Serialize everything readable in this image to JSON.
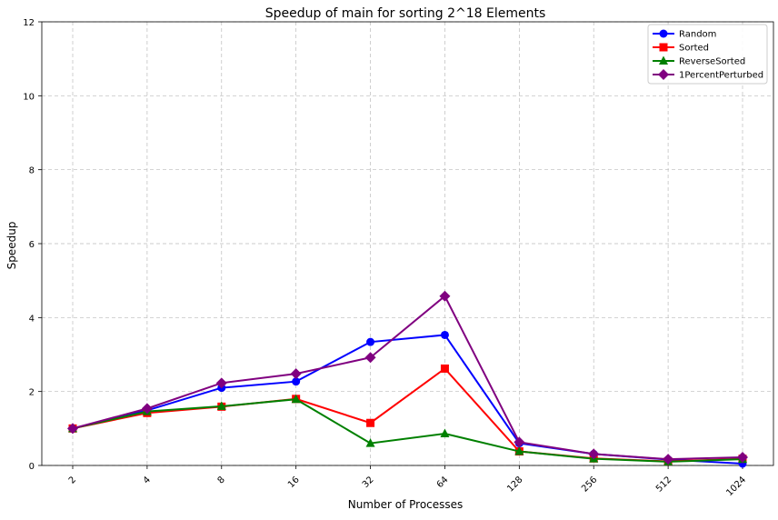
{
  "chart_data": {
    "type": "line",
    "title": "Speedup of main for sorting 2^18 Elements",
    "xlabel": "Number of Processes",
    "ylabel": "Speedup",
    "categories": [
      "2",
      "4",
      "8",
      "16",
      "32",
      "64",
      "128",
      "256",
      "512",
      "1024"
    ],
    "ylim": [
      0,
      12
    ],
    "yticks": [
      0,
      2,
      4,
      6,
      8,
      10,
      12
    ],
    "grid": true,
    "legend_position": "top-right",
    "series": [
      {
        "name": "Random",
        "color": "#0000ff",
        "marker": "circle",
        "values": [
          1.0,
          1.49,
          2.1,
          2.27,
          3.34,
          3.53,
          0.6,
          0.31,
          0.16,
          0.05
        ]
      },
      {
        "name": "Sorted",
        "color": "#ff0000",
        "marker": "square",
        "values": [
          1.0,
          1.42,
          1.59,
          1.8,
          1.15,
          2.62,
          0.38,
          0.19,
          0.11,
          0.18
        ]
      },
      {
        "name": "ReverseSorted",
        "color": "#008000",
        "marker": "triangle",
        "values": [
          1.0,
          1.46,
          1.6,
          1.79,
          0.6,
          0.86,
          0.38,
          0.18,
          0.1,
          0.17
        ]
      },
      {
        "name": "1PercentPerturbed",
        "color": "#800080",
        "marker": "diamond",
        "values": [
          1.0,
          1.54,
          2.23,
          2.48,
          2.92,
          4.58,
          0.63,
          0.31,
          0.17,
          0.22
        ]
      }
    ]
  }
}
